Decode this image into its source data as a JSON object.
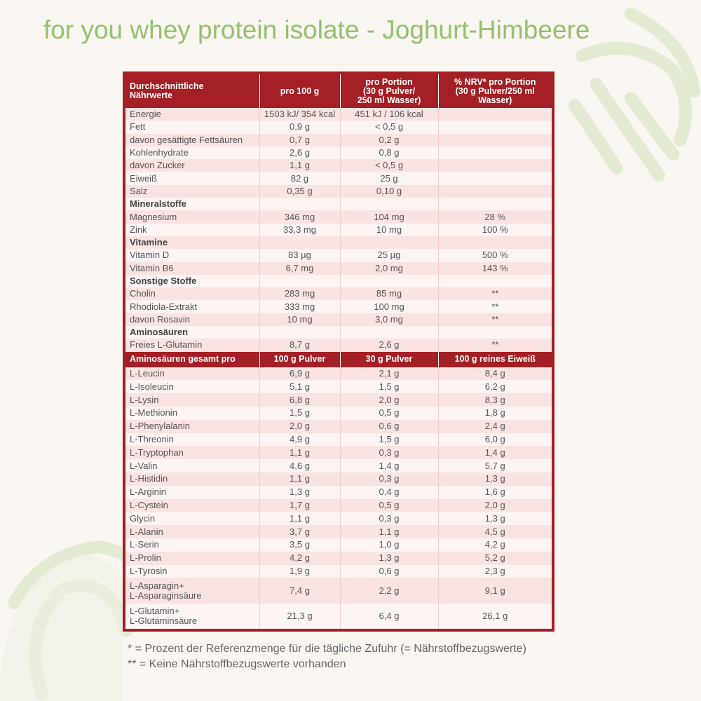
{
  "title": "for you whey protein isolate - Joghurt-Himbeere",
  "table": {
    "header": [
      "Durchschnittliche\nNährwerte",
      "pro 100 g",
      "pro  Portion\n(30 g Pulver/\n250 ml Wasser)",
      "% NRV* pro Portion\n(30 g Pulver/250 ml\nWasser)"
    ],
    "rows": [
      [
        "Energie",
        "1503 kJ/ 354 kcal",
        "451 kJ / 106 kcal"
      ],
      [
        "Fett",
        "0,9 g",
        "< 0,5 g"
      ],
      [
        "davon gesättigte Fettsäuren",
        "0,7 g",
        "0,2 g"
      ],
      [
        "Kohlenhydrate",
        "2,6 g",
        "0,8 g"
      ],
      [
        "davon Zucker",
        "1,1 g",
        "< 0,5 g"
      ],
      [
        "Eiweiß",
        "82 g",
        "25 g"
      ],
      [
        "Salz",
        "0,35 g",
        "0,10 g"
      ],
      [
        "Mineralstoffe"
      ],
      [
        "Magnesium",
        "346 mg",
        "104 mg",
        "28 %"
      ],
      [
        "Zink",
        "33,3 mg",
        "10 mg",
        "100 %"
      ],
      [
        "Vitamine"
      ],
      [
        "Vitamin D",
        "83 µg",
        "25 µg",
        "500 %"
      ],
      [
        "Vitamin B6",
        "6,7 mg",
        "2,0 mg",
        "143 %"
      ],
      [
        "Sonstige Stoffe"
      ],
      [
        "Cholin",
        "283 mg",
        "85 mg",
        "**"
      ],
      [
        "Rhodiola-Extrakt",
        "333 mg",
        "100 mg",
        "**"
      ],
      [
        "davon Rosavin",
        "10 mg",
        "3,0 mg",
        "**"
      ],
      [
        "Aminosäuren"
      ],
      [
        "Freies L-Glutamin",
        "8,7 g",
        "2,6 g",
        "**"
      ]
    ],
    "amino_header": [
      "Aminosäuren gesamt pro",
      "100 g Pulver",
      "30 g Pulver",
      "100 g reines Eiweiß"
    ],
    "amino_rows": [
      [
        "L-Leucin",
        "6,9 g",
        "2,1 g",
        "8,4 g"
      ],
      [
        "L-Isoleucin",
        "5,1 g",
        "1,5 g",
        "6,2 g"
      ],
      [
        "L-Lysin",
        "6,8 g",
        "2,0 g",
        "8,3 g"
      ],
      [
        "L-Methionin",
        "1,5 g",
        "0,5 g",
        "1,8 g"
      ],
      [
        "L-Phenylalanin",
        "2,0 g",
        "0,6 g",
        "2,4 g"
      ],
      [
        "L-Threonin",
        "4,9 g",
        "1,5 g",
        "6,0 g"
      ],
      [
        "L-Tryptophan",
        "1,1 g",
        "0,3 g",
        "1,4 g"
      ],
      [
        "L-Valin",
        "4,6 g",
        "1,4 g",
        "5,7 g"
      ],
      [
        "L-Histidin",
        "1,1 g",
        "0,3 g",
        "1,3 g"
      ],
      [
        "L-Arginin",
        "1,3 g",
        "0,4 g",
        "1,6 g"
      ],
      [
        "L-Cystein",
        "1,7 g",
        "0,5 g",
        "2,0 g"
      ],
      [
        "Glycin",
        "1,1 g",
        "0,3 g",
        "1,3 g"
      ],
      [
        "L-Alanin",
        "3,7 g",
        "1,1 g",
        "4,5 g"
      ],
      [
        "L-Serin",
        "3,5 g",
        "1,0 g",
        "4,2 g"
      ],
      [
        "L-Prolin",
        "4,2 g",
        "1,3 g",
        "5,2 g"
      ],
      [
        "L-Tyrosin",
        "1,9 g",
        "0,6 g",
        "2,3 g"
      ],
      [
        "L-Asparagin+\nL-Asparaginsäure",
        "7,4 g",
        "2,2 g",
        "9,1 g"
      ],
      [
        "L-Glutamin+\nL-Glutaminsäure",
        "21,3 g",
        "6,4 g",
        "26,1 g"
      ]
    ]
  },
  "footnotes": [
    "* = Prozent der Referenzmenge für die tägliche Zufuhr (= Nährstoffbezugswerte)",
    "** = Keine Nährstoffbezugswerte vorhanden"
  ]
}
